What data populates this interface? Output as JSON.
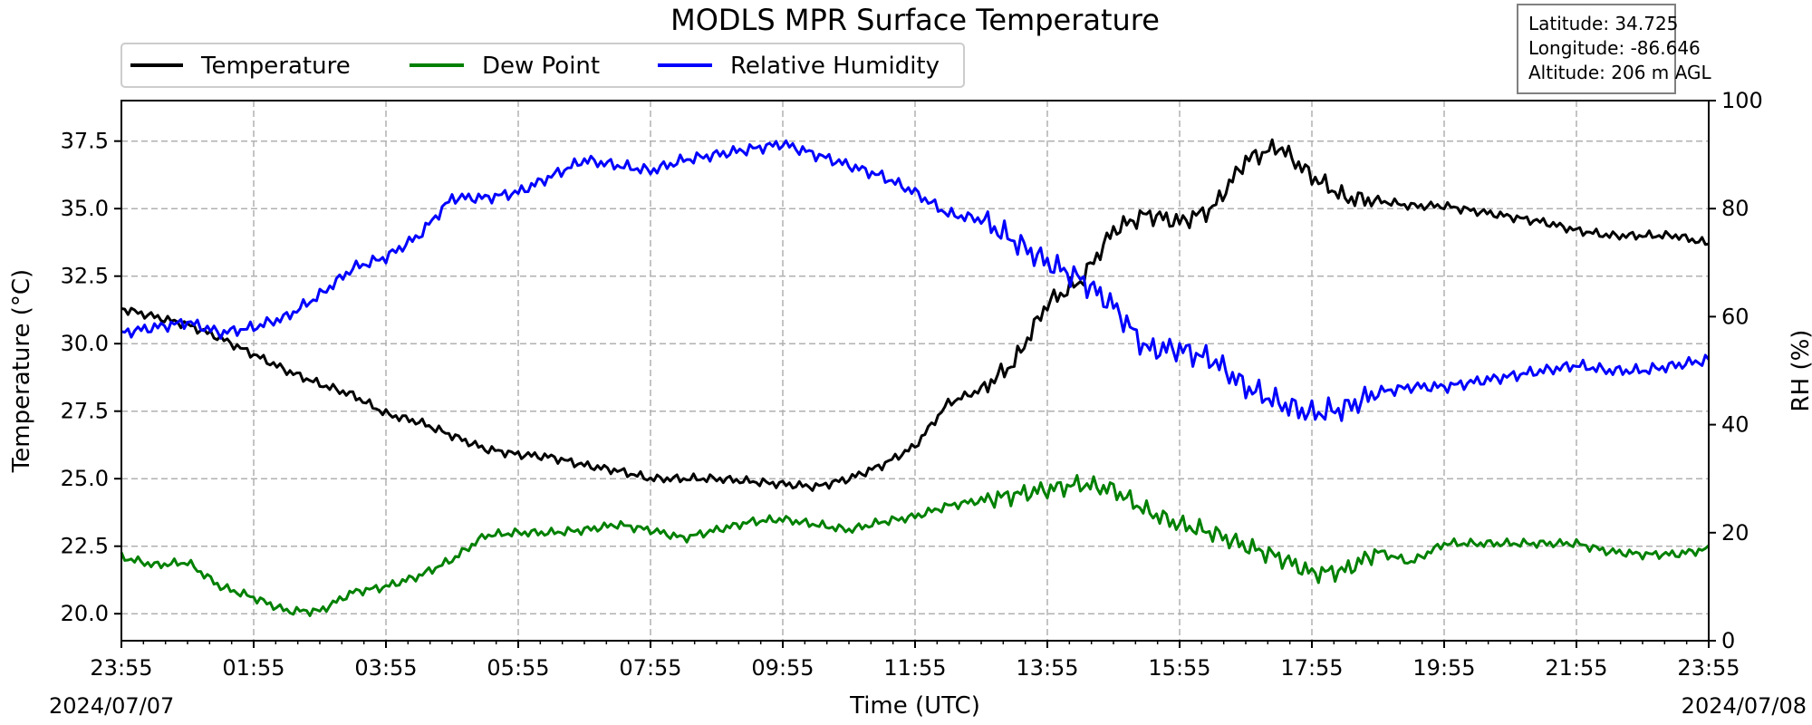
{
  "chart_data": {
    "type": "line",
    "title": "MODLS MPR Surface Temperature",
    "xlabel": "Time (UTC)",
    "ylabel": "Temperature ($^\\circ$C)",
    "ylabel_display": "Temperature (°C)",
    "y2label": "RH (%)",
    "date_start": "2024/07/07",
    "date_end": "2024/07/08",
    "x_tick_labels": [
      "23:55",
      "01:55",
      "03:55",
      "05:55",
      "07:55",
      "09:55",
      "11:55",
      "13:55",
      "15:55",
      "17:55",
      "19:55",
      "21:55",
      "23:55"
    ],
    "ylim": [
      19.0,
      39.0
    ],
    "y_ticks": [
      20.0,
      22.5,
      25.0,
      27.5,
      30.0,
      32.5,
      35.0,
      37.5
    ],
    "y_tick_labels": [
      "20.0",
      "22.5",
      "25.0",
      "27.5",
      "30.0",
      "32.5",
      "35.0",
      "37.5"
    ],
    "y2lim": [
      0,
      100
    ],
    "y2_ticks": [
      0,
      20,
      40,
      60,
      80,
      100
    ],
    "y2_tick_labels": [
      "0",
      "20",
      "40",
      "60",
      "80",
      "100"
    ],
    "grid": true,
    "legend_position": "top-left",
    "info_box": {
      "latitude": "Latitude: 34.725",
      "longitude": "Longitude: -86.646",
      "altitude": "Altitude: 206 m AGL"
    },
    "series": [
      {
        "name": "Temperature",
        "color": "#000000",
        "axis": "left",
        "x_hours": [
          0,
          0.5,
          1,
          1.5,
          2,
          2.5,
          3,
          3.5,
          4,
          4.5,
          5,
          5.5,
          6,
          6.5,
          7,
          7.5,
          8,
          8.5,
          9,
          9.5,
          10,
          10.5,
          11,
          11.5,
          12,
          12.5,
          13,
          13.5,
          14,
          14.5,
          15,
          15.5,
          16,
          16.5,
          17,
          17.5,
          18,
          18.5,
          19,
          19.5,
          20,
          20.5,
          21,
          21.5,
          22,
          22.5,
          23,
          23.5,
          24
        ],
        "values": [
          31.3,
          31.0,
          30.7,
          30.2,
          29.6,
          29.0,
          28.5,
          28.1,
          27.4,
          27.1,
          26.6,
          26.1,
          25.9,
          25.8,
          25.5,
          25.3,
          25.0,
          25.0,
          25.0,
          24.9,
          24.8,
          24.7,
          25.0,
          25.5,
          26.2,
          27.8,
          28.3,
          29.3,
          31.5,
          32.3,
          34.2,
          34.8,
          34.5,
          35.0,
          36.8,
          37.3,
          36.2,
          35.4,
          35.3,
          35.1,
          35.1,
          34.9,
          34.7,
          34.5,
          34.2,
          34.0,
          34.0,
          34.0,
          33.7
        ]
      },
      {
        "name": "Dew Point",
        "color": "#008000",
        "axis": "left",
        "x_hours": [
          0,
          0.5,
          1,
          1.5,
          2,
          2.5,
          3,
          3.5,
          4,
          4.5,
          5,
          5.5,
          6,
          6.5,
          7,
          7.5,
          8,
          8.5,
          9,
          9.5,
          10,
          10.5,
          11,
          11.5,
          12,
          12.5,
          13,
          13.5,
          14,
          14.5,
          15,
          15.5,
          16,
          16.5,
          17,
          17.5,
          18,
          18.5,
          19,
          19.5,
          20,
          20.5,
          21,
          21.5,
          22,
          22.5,
          23,
          23.5,
          24
        ],
        "values": [
          22.1,
          21.8,
          21.9,
          21.0,
          20.6,
          20.1,
          20.1,
          20.8,
          21.0,
          21.4,
          22.0,
          22.9,
          23.0,
          23.0,
          23.1,
          23.3,
          23.1,
          22.8,
          23.1,
          23.4,
          23.5,
          23.3,
          23.1,
          23.4,
          23.6,
          24.0,
          24.2,
          24.4,
          24.6,
          24.8,
          24.6,
          23.8,
          23.3,
          23.0,
          22.5,
          22.1,
          21.5,
          21.6,
          22.3,
          21.9,
          22.6,
          22.6,
          22.6,
          22.6,
          22.6,
          22.3,
          22.2,
          22.2,
          22.4
        ]
      },
      {
        "name": "Relative Humidity",
        "color": "#0000ff",
        "axis": "right",
        "x_hours": [
          0,
          0.5,
          1,
          1.5,
          2,
          2.5,
          3,
          3.5,
          4,
          4.5,
          5,
          5.5,
          6,
          6.5,
          7,
          7.5,
          8,
          8.5,
          9,
          9.5,
          10,
          10.5,
          11,
          11.5,
          12,
          12.5,
          13,
          13.5,
          14,
          14.5,
          15,
          15.5,
          16,
          16.5,
          17,
          17.5,
          18,
          18.5,
          19,
          19.5,
          20,
          20.5,
          21,
          21.5,
          22,
          22.5,
          23,
          23.5,
          24
        ],
        "values": [
          57,
          58,
          59,
          57,
          58,
          60,
          64,
          69,
          71,
          75,
          82,
          82,
          83,
          86,
          89,
          88,
          87,
          89,
          90,
          91,
          92,
          90,
          88,
          86,
          83,
          79,
          78,
          74,
          70,
          67,
          62,
          54,
          54,
          52,
          47,
          44,
          42,
          43,
          46,
          47,
          47,
          48,
          49,
          50,
          51,
          50,
          50,
          51,
          52
        ]
      }
    ]
  }
}
